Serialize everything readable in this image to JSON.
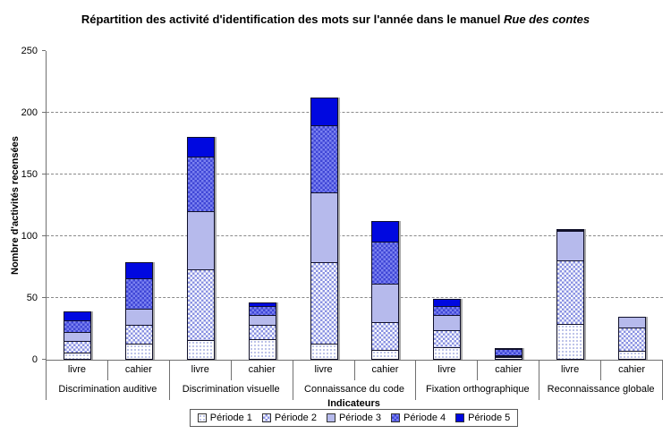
{
  "title": {
    "main": "Répartition des activité d'identification des mots sur l'année dans le manuel ",
    "italic": "Rue des contes"
  },
  "chart_data": {
    "type": "bar",
    "stacked": true,
    "title": "Répartition des activité d'identification des mots sur l'année dans le manuel Rue des contes",
    "xlabel": "Indicateurs",
    "ylabel": "Nombre d'activités recensées",
    "ylim": [
      0,
      250
    ],
    "yticks": [
      0,
      50,
      100,
      150,
      200,
      250
    ],
    "grid": "horizontal-dashed",
    "legend_position": "bottom",
    "categories": [
      "Discrimination auditive",
      "Discrimination visuelle",
      "Connaissance du code",
      "Fixation orthographique",
      "Reconnaissance globale"
    ],
    "sub_categories": [
      "livre",
      "cahier"
    ],
    "bar_order_note": "values arrays are ordered: [cat1-livre, cat1-cahier, cat2-livre, cat2-cahier, cat3-livre, cat3-cahier, cat4-livre, cat4-cahier, cat5-livre, cat5-cahier]",
    "series": [
      {
        "name": "Période 1",
        "values": [
          6,
          13,
          16,
          17,
          13,
          8,
          10,
          2,
          29,
          7
        ]
      },
      {
        "name": "Période 2",
        "values": [
          10,
          16,
          58,
          12,
          67,
          23,
          15,
          1,
          52,
          20
        ]
      },
      {
        "name": "Période 3",
        "values": [
          8,
          14,
          48,
          9,
          57,
          32,
          13,
          1,
          25,
          9
        ]
      },
      {
        "name": "Période 4",
        "values": [
          10,
          25,
          45,
          8,
          55,
          35,
          8,
          6,
          1,
          0
        ]
      },
      {
        "name": "Période 5",
        "values": [
          8,
          14,
          16,
          3,
          23,
          17,
          6,
          1,
          1,
          0
        ]
      }
    ],
    "stack_totals": [
      42,
      82,
      183,
      49,
      215,
      115,
      52,
      11,
      108,
      36
    ]
  },
  "colors": {
    "periode1": {
      "pattern": "dots",
      "base": "#ffffff",
      "dot": "#a8b0e2"
    },
    "periode2": {
      "pattern": "checker",
      "base": "#ffffff",
      "check": "#8a92e2"
    },
    "periode3": {
      "pattern": "solid",
      "fill": "#b6baec"
    },
    "periode4": {
      "pattern": "checker",
      "base": "#7b82f0",
      "check": "#3f46d6"
    },
    "periode5": {
      "pattern": "solid",
      "fill": "#0008e0"
    },
    "segment_border": "#10102a",
    "axis": "#707070",
    "gridline": "#8a8a8a",
    "text": "#000000"
  }
}
